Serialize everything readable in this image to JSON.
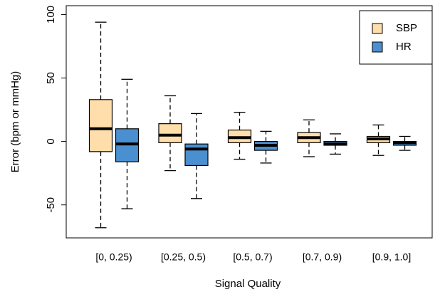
{
  "chart_data": {
    "type": "boxplot",
    "x_label": "Signal Quality",
    "y_label": "Error (bpm or mmHg)",
    "categories": [
      "[0, 0.25)",
      "[0.25, 0.5)",
      "[0.5, 0.7)",
      "[0.7, 0.9)",
      "[0.9, 1.0]"
    ],
    "series": [
      {
        "name": "SBP",
        "color": "#ffdeab",
        "whisker_low": [
          -68,
          -23,
          -14,
          -12,
          -11
        ],
        "q1": [
          -8,
          -1,
          -1,
          -1,
          -1
        ],
        "median": [
          10,
          5,
          3,
          3,
          2
        ],
        "q3": [
          33,
          14,
          9,
          7,
          4
        ],
        "whisker_high": [
          94,
          36,
          23,
          17,
          13
        ]
      },
      {
        "name": "HR",
        "color": "#4a8fd0",
        "whisker_low": [
          -53,
          -45,
          -17,
          -10,
          -7
        ],
        "q1": [
          -16,
          -19,
          -7,
          -3,
          -3
        ],
        "median": [
          -2,
          -6,
          -3,
          -2,
          -1
        ],
        "q3": [
          10,
          -2,
          0,
          0,
          0
        ],
        "whisker_high": [
          49,
          22,
          8,
          6,
          4
        ]
      }
    ],
    "ylim": [
      -76,
      107
    ],
    "yticks": [
      -50,
      0,
      50,
      100
    ],
    "legend": "top-right"
  }
}
